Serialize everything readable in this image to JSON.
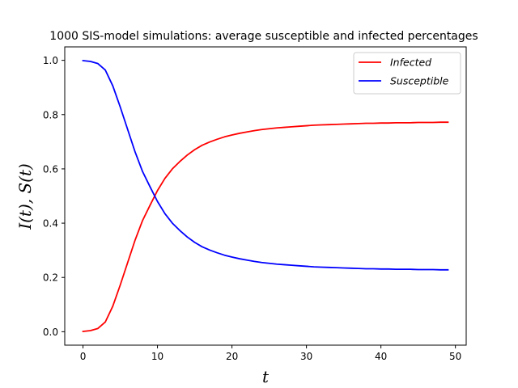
{
  "chart_data": {
    "type": "line",
    "title": "1000 SIS-model simulations: average susceptible and infected percentages",
    "xlabel": "t",
    "ylabel": "I(t), S(t)",
    "xlim": [
      -2.45,
      51.45
    ],
    "ylim": [
      -0.0495,
      1.0495
    ],
    "xticks": [
      0,
      10,
      20,
      30,
      40,
      50
    ],
    "xtick_labels": [
      "0",
      "10",
      "20",
      "30",
      "40",
      "50"
    ],
    "yticks": [
      0.0,
      0.2,
      0.4,
      0.6,
      0.8,
      1.0
    ],
    "ytick_labels": [
      "0.0",
      "0.2",
      "0.4",
      "0.6",
      "0.8",
      "1.0"
    ],
    "grid": false,
    "legend_position": "top-right",
    "x": [
      0,
      1,
      2,
      3,
      4,
      5,
      6,
      7,
      8,
      9,
      10,
      11,
      12,
      13,
      14,
      15,
      16,
      17,
      18,
      19,
      20,
      21,
      22,
      23,
      24,
      25,
      26,
      27,
      28,
      29,
      30,
      31,
      32,
      33,
      34,
      35,
      36,
      37,
      38,
      39,
      40,
      41,
      42,
      43,
      44,
      45,
      46,
      47,
      48,
      49
    ],
    "series": [
      {
        "name": "Infected",
        "color": "#ff0000",
        "values": [
          0.001,
          0.004,
          0.012,
          0.036,
          0.094,
          0.172,
          0.255,
          0.338,
          0.41,
          0.466,
          0.52,
          0.565,
          0.6,
          0.627,
          0.651,
          0.671,
          0.687,
          0.699,
          0.709,
          0.718,
          0.725,
          0.731,
          0.736,
          0.741,
          0.745,
          0.748,
          0.751,
          0.753,
          0.755,
          0.757,
          0.759,
          0.761,
          0.762,
          0.763,
          0.764,
          0.765,
          0.766,
          0.767,
          0.768,
          0.768,
          0.769,
          0.769,
          0.77,
          0.77,
          0.77,
          0.771,
          0.771,
          0.771,
          0.772,
          0.772
        ]
      },
      {
        "name": "Susceptible",
        "color": "#0000ff",
        "values": [
          0.999,
          0.996,
          0.988,
          0.964,
          0.906,
          0.828,
          0.745,
          0.662,
          0.59,
          0.534,
          0.48,
          0.435,
          0.4,
          0.373,
          0.349,
          0.329,
          0.313,
          0.301,
          0.291,
          0.282,
          0.275,
          0.269,
          0.264,
          0.259,
          0.255,
          0.252,
          0.249,
          0.247,
          0.245,
          0.243,
          0.241,
          0.239,
          0.238,
          0.237,
          0.236,
          0.235,
          0.234,
          0.233,
          0.232,
          0.232,
          0.231,
          0.231,
          0.23,
          0.23,
          0.23,
          0.229,
          0.229,
          0.229,
          0.228,
          0.228
        ]
      }
    ]
  }
}
